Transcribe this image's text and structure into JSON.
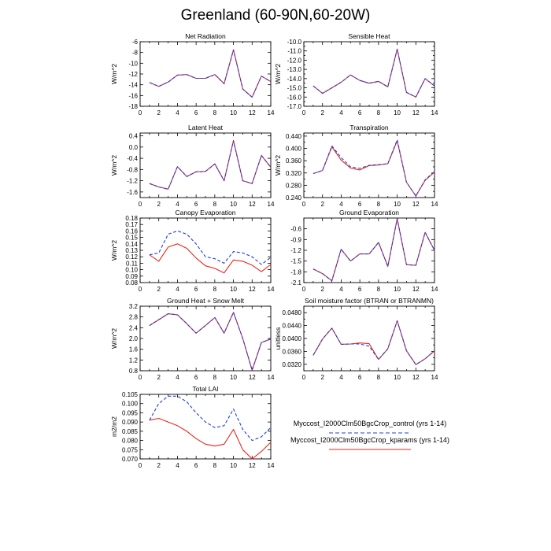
{
  "title": "Greenland (60-90N,60-20W)",
  "colors": {
    "control": "#1f3fdc",
    "kparams": "#e8261b",
    "axis": "#000000"
  },
  "legend": [
    {
      "label": "Myccost_I2000Clm50BgcCrop_control (yrs 1-14)",
      "color": "#1f3fdc",
      "style": "dashed"
    },
    {
      "label": "Myccost_I2000Clm50BgcCrop_kparams (yrs 1-14)",
      "color": "#e8261b",
      "style": "solid"
    }
  ],
  "chart_data": [
    {
      "type": "line",
      "title": "Net Radiation",
      "ylabel": "W/m^2",
      "xlim": [
        0,
        14
      ],
      "xticks": [
        0,
        2,
        4,
        6,
        8,
        10,
        12,
        14
      ],
      "ylim": [
        -18,
        -6
      ],
      "yticks": [
        -18,
        -16,
        -14,
        -12,
        -10,
        -8,
        -6
      ],
      "ytick_labels": [
        "-18",
        "-16",
        "-14",
        "-12",
        "-10",
        "-8",
        "-6"
      ],
      "x": [
        1,
        2,
        3,
        4,
        5,
        6,
        7,
        8,
        9,
        10,
        11,
        12,
        13,
        14
      ],
      "series": [
        {
          "name": "Myccost_I2000Clm50BgcCrop_control (yrs 1-14)",
          "style": "dashed",
          "values": [
            -13.6,
            -14.3,
            -13.5,
            -12.2,
            -12.1,
            -12.8,
            -12.8,
            -12.1,
            -13.8,
            -7.5,
            -14.8,
            -16.3,
            -12.4,
            -13.4
          ]
        },
        {
          "name": "Myccost_I2000Clm50BgcCrop_kparams (yrs 1-14)",
          "style": "solid",
          "values": [
            -13.6,
            -14.3,
            -13.5,
            -12.2,
            -12.1,
            -12.8,
            -12.8,
            -12.1,
            -13.8,
            -7.5,
            -14.8,
            -16.3,
            -12.4,
            -13.4
          ]
        }
      ]
    },
    {
      "type": "line",
      "title": "Sensible Heat",
      "ylabel": "W/m^2",
      "xlim": [
        0,
        14
      ],
      "xticks": [
        0,
        2,
        4,
        6,
        8,
        10,
        12,
        14
      ],
      "ylim": [
        -17,
        -10
      ],
      "yticks": [
        -17,
        -16.5,
        -16,
        -15.5,
        -15,
        -14.5,
        -14,
        -13.5,
        -13,
        -12.5,
        -12,
        -11.5,
        -11,
        -10.5,
        -10
      ],
      "ytick_labels": [
        "-17.0",
        "",
        "-16.0",
        "",
        "-15.0",
        "",
        "-14.0",
        "",
        "-13.0",
        "",
        "-12.0",
        "",
        "-11.0",
        "",
        "-10.0"
      ],
      "x": [
        1,
        2,
        3,
        4,
        5,
        6,
        7,
        8,
        9,
        10,
        11,
        12,
        13,
        14
      ],
      "series": [
        {
          "name": "Myccost_I2000Clm50BgcCrop_control (yrs 1-14)",
          "style": "dashed",
          "values": [
            -14.8,
            -15.6,
            -15.0,
            -14.4,
            -13.6,
            -14.2,
            -14.5,
            -14.3,
            -14.9,
            -10.8,
            -15.5,
            -16.0,
            -14.0,
            -14.8
          ]
        },
        {
          "name": "Myccost_I2000Clm50BgcCrop_kparams (yrs 1-14)",
          "style": "solid",
          "values": [
            -14.8,
            -15.6,
            -15.0,
            -14.4,
            -13.6,
            -14.2,
            -14.5,
            -14.3,
            -14.9,
            -10.8,
            -15.5,
            -16.0,
            -14.0,
            -14.8
          ]
        }
      ]
    },
    {
      "type": "line",
      "title": "Latent Heat",
      "ylabel": "W/m^2",
      "xlim": [
        0,
        14
      ],
      "xticks": [
        0,
        2,
        4,
        6,
        8,
        10,
        12,
        14
      ],
      "ylim": [
        -1.8,
        0.5
      ],
      "yticks": [
        -1.6,
        -1.2,
        -0.8,
        -0.4,
        0.0,
        0.4
      ],
      "ytick_labels": [
        "-1.6",
        "-1.2",
        "-0.8",
        "-0.4",
        "0.0",
        "0.4"
      ],
      "x": [
        1,
        2,
        3,
        4,
        5,
        6,
        7,
        8,
        9,
        10,
        11,
        12,
        13,
        14
      ],
      "series": [
        {
          "name": "Myccost_I2000Clm50BgcCrop_control (yrs 1-14)",
          "style": "dashed",
          "values": [
            -1.3,
            -1.42,
            -1.5,
            -0.7,
            -1.05,
            -0.88,
            -0.87,
            -0.6,
            -1.2,
            0.23,
            -1.2,
            -1.3,
            -0.3,
            -0.72
          ]
        },
        {
          "name": "Myccost_I2000Clm50BgcCrop_kparams (yrs 1-14)",
          "style": "solid",
          "values": [
            -1.3,
            -1.42,
            -1.5,
            -0.7,
            -1.05,
            -0.88,
            -0.87,
            -0.6,
            -1.2,
            0.23,
            -1.2,
            -1.3,
            -0.3,
            -0.72
          ]
        }
      ]
    },
    {
      "type": "line",
      "title": "Transpiration",
      "ylabel": "W/m^2",
      "xlim": [
        0,
        14
      ],
      "xticks": [
        0,
        2,
        4,
        6,
        8,
        10,
        12,
        14
      ],
      "ylim": [
        0.24,
        0.45
      ],
      "yticks": [
        0.24,
        0.26,
        0.28,
        0.3,
        0.32,
        0.34,
        0.36,
        0.38,
        0.4,
        0.42,
        0.44
      ],
      "ytick_labels": [
        "0.240",
        "",
        "0.280",
        "",
        "0.320",
        "",
        "0.360",
        "",
        "0.400",
        "",
        "0.440"
      ],
      "x": [
        1,
        2,
        3,
        4,
        5,
        6,
        7,
        8,
        9,
        10,
        11,
        12,
        13,
        14
      ],
      "series": [
        {
          "name": "Myccost_I2000Clm50BgcCrop_control (yrs 1-14)",
          "style": "dashed",
          "values": [
            0.318,
            0.328,
            0.408,
            0.37,
            0.34,
            0.335,
            0.345,
            0.347,
            0.35,
            0.428,
            0.29,
            0.245,
            0.298,
            0.325
          ]
        },
        {
          "name": "Myccost_I2000Clm50BgcCrop_kparams (yrs 1-14)",
          "style": "solid",
          "values": [
            0.318,
            0.328,
            0.405,
            0.362,
            0.336,
            0.33,
            0.344,
            0.346,
            0.35,
            0.425,
            0.29,
            0.245,
            0.296,
            0.323
          ]
        }
      ]
    },
    {
      "type": "line",
      "title": "Canopy Evaporation",
      "ylabel": "W/m^2",
      "xlim": [
        0,
        14
      ],
      "xticks": [
        0,
        2,
        4,
        6,
        8,
        10,
        12,
        14
      ],
      "ylim": [
        0.08,
        0.18
      ],
      "yticks": [
        0.08,
        0.09,
        0.1,
        0.11,
        0.12,
        0.13,
        0.14,
        0.15,
        0.16,
        0.17,
        0.18
      ],
      "ytick_labels": [
        "0.08",
        "0.09",
        "0.10",
        "0.11",
        "0.12",
        "0.13",
        "0.14",
        "0.15",
        "0.16",
        "0.17",
        "0.18"
      ],
      "x": [
        1,
        2,
        3,
        4,
        5,
        6,
        7,
        8,
        9,
        10,
        11,
        12,
        13,
        14
      ],
      "series": [
        {
          "name": "Myccost_I2000Clm50BgcCrop_control (yrs 1-14)",
          "style": "dashed",
          "values": [
            0.123,
            0.126,
            0.155,
            0.16,
            0.155,
            0.14,
            0.12,
            0.117,
            0.11,
            0.128,
            0.126,
            0.12,
            0.108,
            0.119
          ]
        },
        {
          "name": "Myccost_I2000Clm50BgcCrop_kparams (yrs 1-14)",
          "style": "solid",
          "values": [
            0.123,
            0.113,
            0.135,
            0.14,
            0.133,
            0.118,
            0.106,
            0.102,
            0.095,
            0.115,
            0.113,
            0.107,
            0.097,
            0.108
          ]
        }
      ]
    },
    {
      "type": "line",
      "title": "Ground Evaporation",
      "ylabel": "",
      "xlim": [
        0,
        14
      ],
      "xticks": [
        0,
        2,
        4,
        6,
        8,
        10,
        12,
        14
      ],
      "ylim": [
        -2.1,
        -0.3
      ],
      "yticks": [
        -2.1,
        -1.8,
        -1.5,
        -1.2,
        -0.9,
        -0.6
      ],
      "ytick_labels": [
        "-2.1",
        "-1.8",
        "-1.5",
        "-1.2",
        "-0.9",
        "-0.6"
      ],
      "x": [
        1,
        2,
        3,
        4,
        5,
        6,
        7,
        8,
        9,
        10,
        11,
        12,
        13,
        14
      ],
      "series": [
        {
          "name": "Myccost_I2000Clm50BgcCrop_control (yrs 1-14)",
          "style": "dashed",
          "values": [
            -1.72,
            -1.85,
            -2.05,
            -1.17,
            -1.5,
            -1.3,
            -1.3,
            -0.98,
            -1.65,
            -0.32,
            -1.6,
            -1.62,
            -0.7,
            -1.2
          ]
        },
        {
          "name": "Myccost_I2000Clm50BgcCrop_kparams (yrs 1-14)",
          "style": "solid",
          "values": [
            -1.72,
            -1.85,
            -2.05,
            -1.17,
            -1.5,
            -1.3,
            -1.3,
            -0.98,
            -1.65,
            -0.32,
            -1.6,
            -1.62,
            -0.7,
            -1.2
          ]
        }
      ]
    },
    {
      "type": "line",
      "title": "Ground Heat + Snow Melt",
      "ylabel": "W/m^2",
      "xlim": [
        0,
        14
      ],
      "xticks": [
        0,
        2,
        4,
        6,
        8,
        10,
        12,
        14
      ],
      "ylim": [
        0.8,
        3.2
      ],
      "yticks": [
        0.8,
        1.2,
        1.6,
        2.0,
        2.4,
        2.8,
        3.2
      ],
      "ytick_labels": [
        "0.8",
        "1.2",
        "1.6",
        "2.0",
        "2.4",
        "2.8",
        "3.2"
      ],
      "x": [
        1,
        2,
        3,
        4,
        5,
        6,
        7,
        8,
        9,
        10,
        11,
        12,
        13,
        14
      ],
      "series": [
        {
          "name": "Myccost_I2000Clm50BgcCrop_control (yrs 1-14)",
          "style": "dashed",
          "values": [
            2.48,
            2.7,
            2.92,
            2.88,
            2.55,
            2.2,
            2.48,
            2.78,
            2.2,
            2.97,
            2.0,
            0.82,
            1.85,
            1.98
          ]
        },
        {
          "name": "Myccost_I2000Clm50BgcCrop_kparams (yrs 1-14)",
          "style": "solid",
          "values": [
            2.48,
            2.7,
            2.92,
            2.88,
            2.55,
            2.2,
            2.48,
            2.78,
            2.2,
            2.97,
            2.0,
            0.82,
            1.85,
            1.98
          ]
        }
      ]
    },
    {
      "type": "line",
      "title": "Soil moisture factor (BTRAN or BTRANMN)",
      "ylabel": "unitless",
      "xlim": [
        0,
        14
      ],
      "xticks": [
        0,
        2,
        4,
        6,
        8,
        10,
        12,
        14
      ],
      "ylim": [
        0.03,
        0.05
      ],
      "yticks": [
        0.03,
        0.032,
        0.034,
        0.036,
        0.038,
        0.04,
        0.042,
        0.044,
        0.046,
        0.048,
        0.05
      ],
      "ytick_labels": [
        "",
        "0.0320",
        "",
        "0.0360",
        "",
        "0.0400",
        "",
        "0.0440",
        "",
        "0.0480",
        ""
      ],
      "x": [
        1,
        2,
        3,
        4,
        5,
        6,
        7,
        8,
        9,
        10,
        11,
        12,
        13,
        14
      ],
      "series": [
        {
          "name": "Myccost_I2000Clm50BgcCrop_control (yrs 1-14)",
          "style": "dashed",
          "values": [
            0.0348,
            0.0398,
            0.0432,
            0.0382,
            0.0383,
            0.0383,
            0.0376,
            0.0335,
            0.0368,
            0.0455,
            0.0362,
            0.0319,
            0.0337,
            0.0362
          ]
        },
        {
          "name": "Myccost_I2000Clm50BgcCrop_kparams (yrs 1-14)",
          "style": "solid",
          "values": [
            0.0348,
            0.0398,
            0.0432,
            0.0382,
            0.0383,
            0.0386,
            0.0384,
            0.0335,
            0.0368,
            0.0455,
            0.0362,
            0.0319,
            0.0337,
            0.0362
          ]
        }
      ]
    },
    {
      "type": "line",
      "title": "Total LAI",
      "ylabel": "m2/m2",
      "xlim": [
        0,
        14
      ],
      "xticks": [
        0,
        2,
        4,
        6,
        8,
        10,
        12,
        14
      ],
      "ylim": [
        0.07,
        0.105
      ],
      "yticks": [
        0.07,
        0.075,
        0.08,
        0.085,
        0.09,
        0.095,
        0.1,
        0.105
      ],
      "ytick_labels": [
        "0.070",
        "0.075",
        "0.080",
        "0.085",
        "0.090",
        "0.095",
        "0.100",
        "0.105"
      ],
      "x": [
        1,
        2,
        3,
        4,
        5,
        6,
        7,
        8,
        9,
        10,
        11,
        12,
        13,
        14
      ],
      "series": [
        {
          "name": "Myccost_I2000Clm50BgcCrop_control (yrs 1-14)",
          "style": "dashed",
          "values": [
            0.091,
            0.1,
            0.104,
            0.104,
            0.101,
            0.095,
            0.09,
            0.087,
            0.088,
            0.097,
            0.086,
            0.08,
            0.082,
            0.087
          ]
        },
        {
          "name": "Myccost_I2000Clm50BgcCrop_kparams (yrs 1-14)",
          "style": "solid",
          "values": [
            0.091,
            0.092,
            0.09,
            0.088,
            0.085,
            0.081,
            0.078,
            0.077,
            0.078,
            0.086,
            0.075,
            0.07,
            0.074,
            0.079
          ]
        }
      ]
    }
  ]
}
